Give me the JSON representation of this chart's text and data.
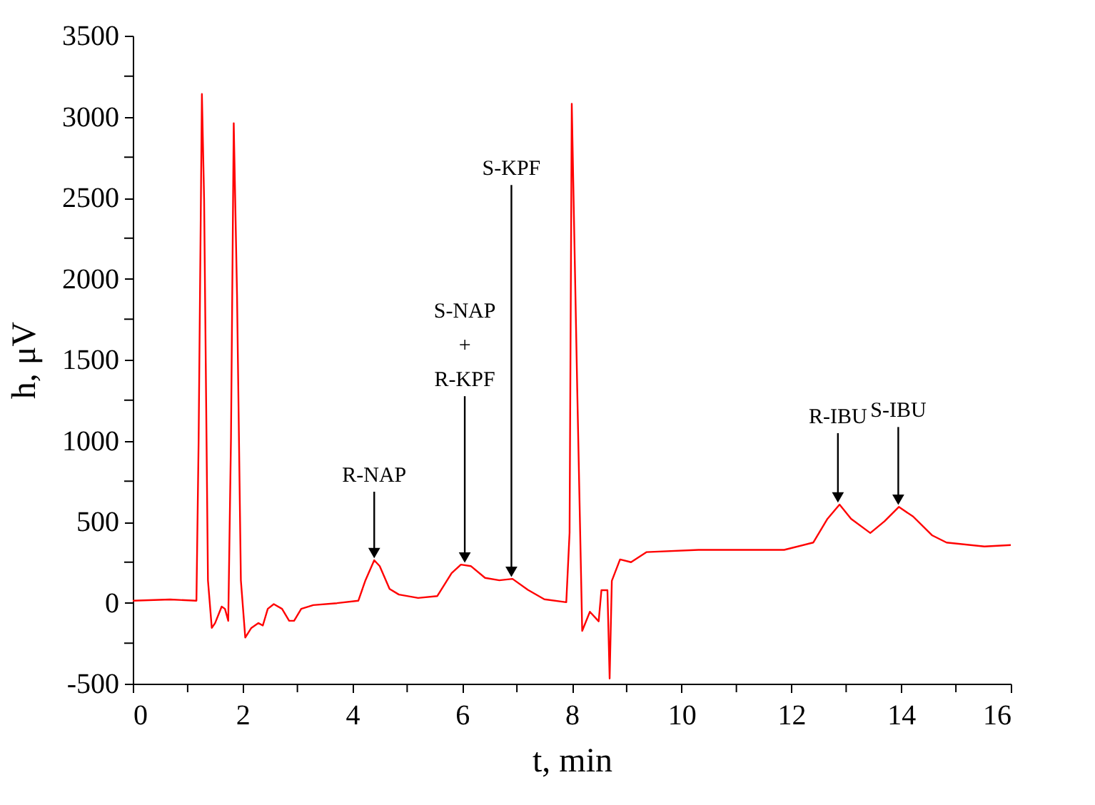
{
  "chart_data": {
    "type": "line",
    "xlabel": "t, min",
    "ylabel": "h, μV",
    "x": [
      0,
      0.68,
      1.16,
      1.2,
      1.26,
      1.3,
      1.37,
      1.44,
      1.5,
      1.62,
      1.68,
      1.74,
      1.79,
      1.84,
      1.9,
      1.97,
      2.05,
      2.16,
      2.29,
      2.37,
      2.46,
      2.57,
      2.72,
      2.85,
      2.94,
      3.07,
      3.29,
      3.72,
      4.11,
      4.24,
      4.4,
      4.5,
      4.68,
      4.85,
      5.2,
      5.55,
      5.81,
      5.98,
      6.16,
      6.42,
      6.68,
      6.92,
      7.2,
      7.5,
      7.9,
      7.96,
      8.0,
      8.1,
      8.19,
      8.33,
      8.49,
      8.54,
      8.65,
      8.69,
      8.73,
      8.88,
      9.08,
      9.36,
      10.31,
      11.87,
      12.4,
      12.66,
      12.88,
      13.09,
      13.44,
      13.7,
      13.96,
      14.22,
      14.57,
      14.83,
      15.52,
      16.0
    ],
    "series": [
      {
        "color": "#ff0000",
        "values": [
          12,
          20,
          12,
          1000,
          3140,
          2490,
          138,
          -156,
          -126,
          -24,
          -38,
          -112,
          1020,
          2960,
          1900,
          138,
          -215,
          -156,
          -126,
          -141,
          -38,
          -9,
          -38,
          -112,
          -112,
          -38,
          -15,
          -3,
          12,
          138,
          262,
          226,
          85,
          50,
          29,
          41,
          182,
          235,
          226,
          153,
          138,
          147,
          79,
          21,
          3,
          432,
          3080,
          1310,
          -174,
          -56,
          -115,
          77,
          77,
          -468,
          135,
          267,
          250,
          312,
          326,
          326,
          371,
          518,
          606,
          518,
          430,
          503,
          591,
          532,
          415,
          371,
          347,
          356
        ]
      }
    ],
    "xlim": [
      0,
      16
    ],
    "ylim": [
      -500,
      3500
    ],
    "xticks": [
      0,
      {
        "value": 1,
        "label": null
      },
      2,
      {
        "value": 3,
        "label": null
      },
      4,
      {
        "value": 5,
        "label": null
      },
      6,
      {
        "value": 7,
        "label": null
      },
      8,
      {
        "value": 9,
        "label": null
      },
      10,
      {
        "value": 11,
        "label": null
      },
      12,
      {
        "value": 13,
        "label": null
      },
      14,
      {
        "value": 15,
        "label": null
      },
      16
    ],
    "yticks": [
      -500,
      {
        "value": -250,
        "label": null
      },
      0,
      {
        "value": 250,
        "label": null
      },
      500,
      {
        "value": 750,
        "label": null
      },
      1000,
      {
        "value": 1250,
        "label": null
      },
      1500,
      {
        "value": 1750,
        "label": null
      },
      2000,
      {
        "value": 2250,
        "label": null
      },
      2500,
      {
        "value": 2750,
        "label": null
      },
      3000,
      {
        "value": 3250,
        "label": null
      },
      3500
    ],
    "annotations": [
      {
        "text": "R-NAP",
        "x": 4.4,
        "y": 262
      },
      {
        "text": "S-NAP\n+\nR-KPF",
        "x": 6.05,
        "y": 235
      },
      {
        "text": "S-KPF",
        "x": 6.9,
        "y": 147
      },
      {
        "text": "R-IBU",
        "x": 12.85,
        "y": 606
      },
      {
        "text": "S-IBU",
        "x": 13.95,
        "y": 591
      }
    ],
    "grid": false,
    "marker": "none",
    "line_style": "solid"
  }
}
